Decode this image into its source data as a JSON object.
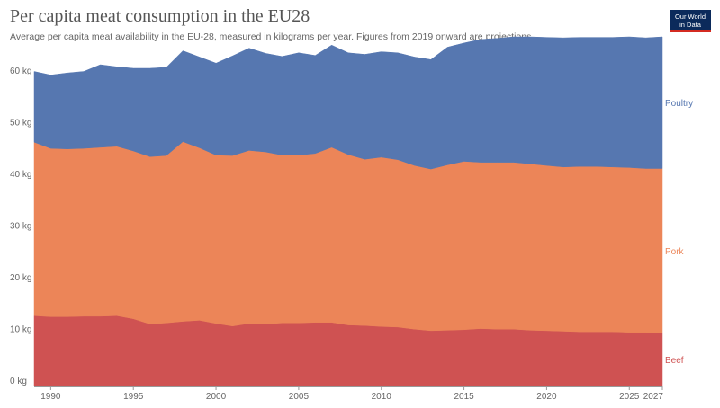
{
  "header": {
    "title": "Per capita meat consumption in the EU28",
    "subtitle": "Average per capita meat availability in the EU-28, measured in kilograms per year. Figures from 2019 onward are projections."
  },
  "logo": {
    "line1": "Our World",
    "line2": "in Data"
  },
  "colors": {
    "beef": "#cf5252",
    "pork": "#ec8558",
    "poultry": "#5677b0"
  },
  "chart_data": {
    "type": "area",
    "stacked": true,
    "x": [
      1989,
      1990,
      1991,
      1992,
      1993,
      1994,
      1995,
      1996,
      1997,
      1998,
      1999,
      2000,
      2001,
      2002,
      2003,
      2004,
      2005,
      2006,
      2007,
      2008,
      2009,
      2010,
      2011,
      2012,
      2013,
      2014,
      2015,
      2016,
      2017,
      2018,
      2019,
      2020,
      2021,
      2022,
      2023,
      2024,
      2025,
      2026,
      2027
    ],
    "series": [
      {
        "name": "Beef",
        "values": [
          13.7,
          13.5,
          13.5,
          13.6,
          13.6,
          13.7,
          13.1,
          12.1,
          12.3,
          12.6,
          12.8,
          12.2,
          11.7,
          12.2,
          12.1,
          12.3,
          12.3,
          12.4,
          12.4,
          11.9,
          11.8,
          11.6,
          11.5,
          11.1,
          10.8,
          10.9,
          11.0,
          11.2,
          11.1,
          11.1,
          10.9,
          10.8,
          10.7,
          10.6,
          10.6,
          10.6,
          10.5,
          10.5,
          10.4
        ]
      },
      {
        "name": "Pork",
        "values": [
          33.6,
          32.6,
          32.5,
          32.5,
          32.7,
          32.8,
          32.5,
          32.4,
          32.4,
          34.8,
          33.4,
          32.6,
          33.0,
          33.5,
          33.3,
          32.5,
          32.5,
          32.7,
          33.9,
          33.0,
          32.2,
          32.8,
          32.4,
          31.7,
          31.3,
          32.0,
          32.6,
          32.2,
          32.3,
          32.3,
          32.2,
          32.0,
          31.8,
          32.0,
          32.0,
          31.9,
          31.9,
          31.7,
          31.8
        ]
      },
      {
        "name": "Poultry",
        "values": [
          13.7,
          14.2,
          14.7,
          14.9,
          16.0,
          15.4,
          16.0,
          17.1,
          17.1,
          17.6,
          17.6,
          17.8,
          19.3,
          19.8,
          19.1,
          19.1,
          19.8,
          19.0,
          19.8,
          19.7,
          20.3,
          20.4,
          20.7,
          21.0,
          21.2,
          22.8,
          22.9,
          23.8,
          24.0,
          24.3,
          24.6,
          24.8,
          25.0,
          25.0,
          25.0,
          25.1,
          25.3,
          25.3,
          25.5
        ]
      }
    ],
    "ylim": [
      0,
      67
    ],
    "y_ticks": [
      0,
      10,
      20,
      30,
      40,
      50,
      60
    ],
    "y_unit": " kg",
    "x_ticks": [
      1990,
      1995,
      2000,
      2005,
      2010,
      2015,
      2020,
      2025,
      2027
    ],
    "grid": "horizontal-dashed",
    "legend": "right-inline"
  }
}
